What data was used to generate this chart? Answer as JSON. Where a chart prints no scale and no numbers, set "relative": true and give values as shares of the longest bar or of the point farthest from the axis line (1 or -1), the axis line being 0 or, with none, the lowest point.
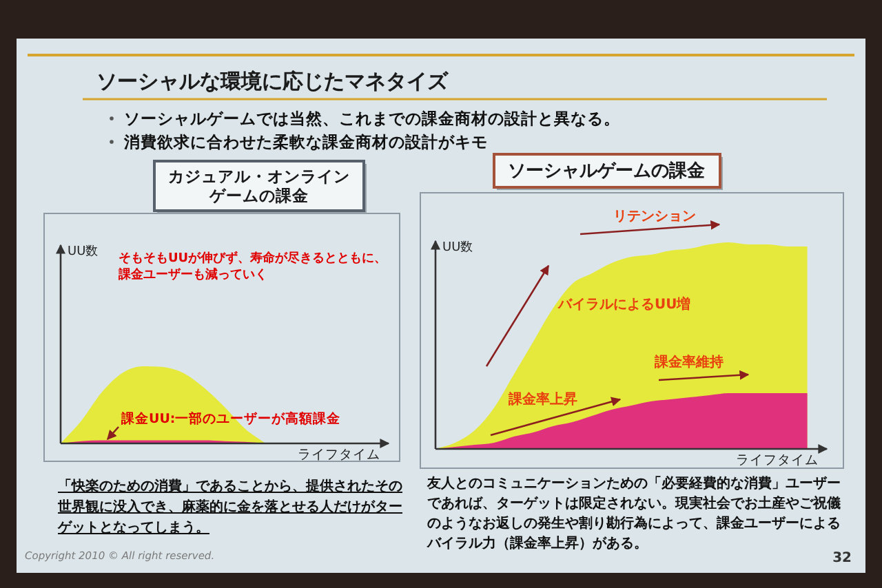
{
  "chart_data": [
    {
      "type": "other",
      "title": "ソーシャルな環境に応じたマネタイズ",
      "annotations": [
        "ソーシャルゲームでは当然、これまでの課金商材の設計と異なる。",
        "消費欲求に合わせた柔軟な課金商材の設計がキモ"
      ]
    },
    {
      "type": "area",
      "title": "カジュアル・オンラインゲームの課金",
      "xlabel": "ライフタイム",
      "ylabel": "UU数",
      "relative": true,
      "categories": [
        null,
        null,
        null,
        null,
        null,
        null,
        null,
        null,
        null,
        null,
        null,
        null,
        null,
        null,
        null,
        null,
        null
      ],
      "series": [
        {
          "color": "#e4e93c",
          "values": [
            0,
            0.29,
            0.66,
            0.91,
            1,
            0.99,
            0.91,
            0.72,
            0.47,
            0.19,
            0,
            null,
            null,
            null,
            null,
            null,
            null
          ]
        },
        {
          "color": "#e0327c",
          "values": [
            0,
            0.03,
            0.04,
            0.04,
            0.04,
            0.04,
            0.04,
            0.04,
            0.03,
            0.02,
            0,
            null,
            null,
            null,
            null,
            null,
            null
          ]
        }
      ],
      "annotations": [
        "そもそもUUが伸びず、寿命が尽きるとともに、課金ユーザーも減っていく",
        "課金UU:一部のユーザーが高額課金",
        "「快楽のための消費」であることから、提供されたその世界観に没入でき、麻薬的に金を落とせる人だけがターゲットとなってしまう。"
      ]
    },
    {
      "type": "area",
      "title": "ソーシャルゲームの課金",
      "xlabel": "ライフタイム",
      "ylabel": "UU数",
      "relative": true,
      "categories": [
        null,
        null,
        null,
        null,
        null,
        null,
        null,
        null,
        null,
        null,
        null,
        null,
        null,
        null,
        null,
        null,
        null,
        null,
        null,
        null,
        null
      ],
      "series": [
        {
          "color": "#e4e93c",
          "values": [
            0,
            0.03,
            0.09,
            0.2,
            0.36,
            0.52,
            0.68,
            0.8,
            0.85,
            0.9,
            0.93,
            0.94,
            0.96,
            0.97,
            0.99,
            1,
            0.99,
            0.99,
            0.98,
            0.98,
            null
          ]
        },
        {
          "color": "#e0327c",
          "values": [
            0,
            0.01,
            0.02,
            0.03,
            0.06,
            0.08,
            0.11,
            0.13,
            0.16,
            0.19,
            0.21,
            0.23,
            0.24,
            0.25,
            0.26,
            0.27,
            0.27,
            0.27,
            0.27,
            0.27,
            null
          ]
        }
      ],
      "annotations": [
        "リテンション",
        "バイラルによるUU増",
        "課金率上昇",
        "課金率維持",
        "友人とのコミュニケーションための「必要経費的な消費」ユーザーであれば、ターゲットは限定されない。現実社会でお土産やご祝儀のようなお返しの発生や割り勘行為によって、課金ユーザーによるバイラル力（課金率上昇）がある。"
      ]
    },
    {
      "type": "other",
      "annotations": [
        "Copyright 2010 © All right reserved.",
        "32"
      ]
    }
  ]
}
